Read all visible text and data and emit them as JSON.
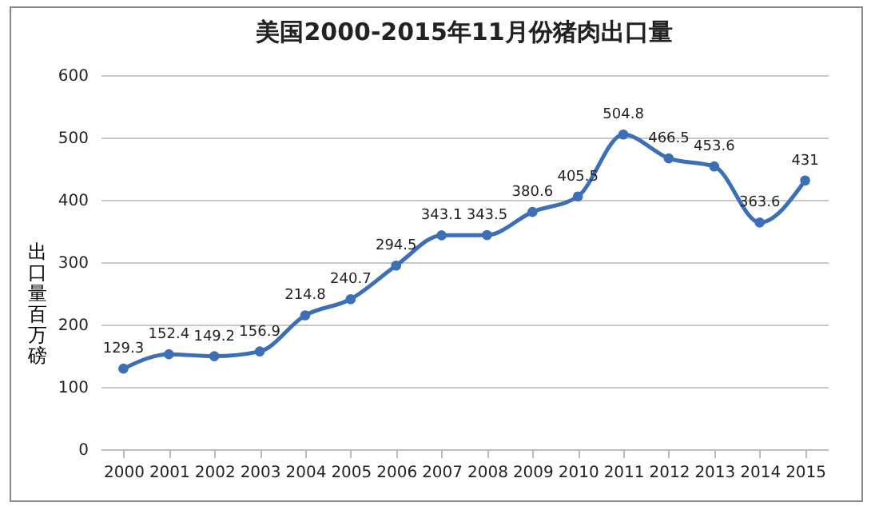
{
  "chart_data": {
    "type": "line",
    "title": "美国2000-2015年11月份猪肉出口量",
    "ylabel": "出口量百万磅",
    "categories": [
      "2000",
      "2001",
      "2002",
      "2003",
      "2004",
      "2005",
      "2006",
      "2007",
      "2008",
      "2009",
      "2010",
      "2011",
      "2012",
      "2013",
      "2014",
      "2015"
    ],
    "series": [
      {
        "color": "#3c6fb6",
        "values": [
          129.3,
          152.4,
          149.2,
          156.9,
          214.8,
          240.7,
          294.5,
          343.1,
          343.5,
          380.6,
          405.5,
          504.8,
          466.5,
          453.6,
          363.6,
          431
        ]
      }
    ],
    "ylim": [
      0,
      600
    ],
    "yticks": [
      0,
      100,
      200,
      300,
      400,
      500,
      600
    ],
    "grid": "y",
    "marker": "circle",
    "data_labels": true,
    "legend": false
  }
}
